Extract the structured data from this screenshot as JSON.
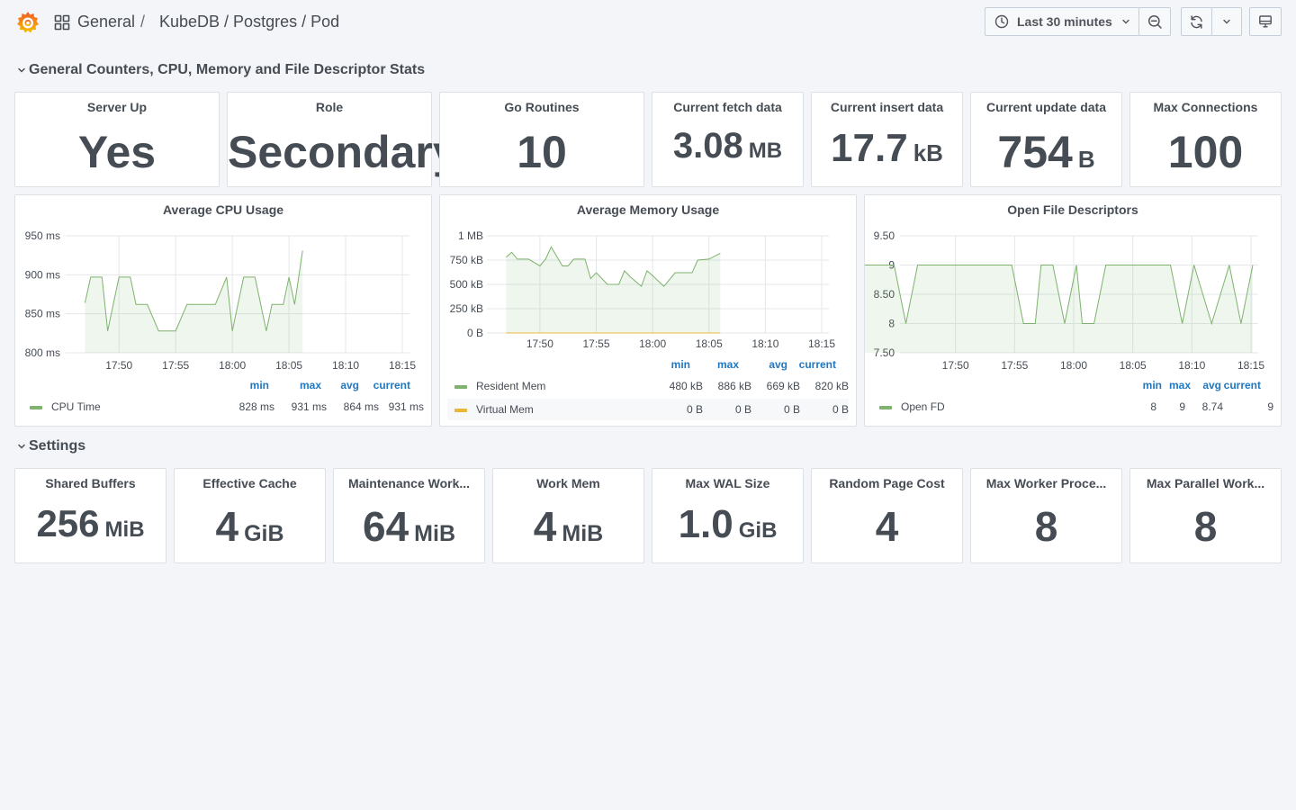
{
  "header": {
    "breadcrumb_root": "General",
    "breadcrumb_sep": "/",
    "dashboard_title": "KubeDB / Postgres / Pod",
    "time_range": "Last 30 minutes"
  },
  "rows": {
    "row1_title": "General Counters, CPU, Memory and File Descriptor Stats",
    "row2_title": "Settings"
  },
  "stats_top": [
    {
      "title": "Server Up",
      "value": "Yes",
      "unit": ""
    },
    {
      "title": "Role",
      "value": "Secondary",
      "unit": ""
    },
    {
      "title": "Go Routines",
      "value": "10",
      "unit": ""
    },
    {
      "title": "Current fetch data",
      "value": "3.08",
      "unit": "MB"
    },
    {
      "title": "Current insert data",
      "value": "17.7",
      "unit": "kB"
    },
    {
      "title": "Current update data",
      "value": "754",
      "unit": "B"
    },
    {
      "title": "Max Connections",
      "value": "100",
      "unit": ""
    }
  ],
  "stats_settings": [
    {
      "title": "Shared Buffers",
      "value": "256",
      "unit": "MiB"
    },
    {
      "title": "Effective Cache",
      "value": "4",
      "unit": "GiB"
    },
    {
      "title": "Maintenance Work...",
      "value": "64",
      "unit": "MiB"
    },
    {
      "title": "Work Mem",
      "value": "4",
      "unit": "MiB"
    },
    {
      "title": "Max WAL Size",
      "value": "1.0",
      "unit": "GiB"
    },
    {
      "title": "Random Page Cost",
      "value": "4",
      "unit": ""
    },
    {
      "title": "Max Worker Proce...",
      "value": "8",
      "unit": ""
    },
    {
      "title": "Max Parallel Work...",
      "value": "8",
      "unit": ""
    }
  ],
  "legend_headers": {
    "min": "min",
    "max": "max",
    "avg": "avg",
    "current": "current"
  },
  "colors": {
    "series_green": "#7eb26d",
    "series_yellow": "#eab839",
    "legend_header": "#1f78c1"
  },
  "chart_data": [
    {
      "type": "line",
      "title": "Average CPU Usage",
      "x_ticks": [
        "17:50",
        "17:55",
        "18:00",
        "18:05",
        "18:10",
        "18:15"
      ],
      "y_ticks": [
        "950 ms",
        "900 ms",
        "850 ms",
        "800 ms"
      ],
      "ylim": [
        800,
        950
      ],
      "x_range_min": [
        -3,
        16.2
      ],
      "legend": "bottom",
      "series": [
        {
          "name": "CPU Time",
          "color": "#7eb26d",
          "fill": true,
          "x_min": [
            -3,
            -2.5,
            -1.5,
            -1,
            0,
            1,
            1.5,
            2.5,
            3.5,
            4,
            5,
            6,
            7,
            8,
            8.5,
            9.5,
            10,
            11,
            12,
            13,
            13.5,
            14.5,
            15,
            15.5,
            16.2
          ],
          "values": [
            864,
            897,
            897,
            828,
            897,
            897,
            862,
            862,
            828,
            828,
            828,
            862,
            862,
            862,
            862,
            897,
            828,
            897,
            897,
            828,
            862,
            862,
            897,
            862,
            931
          ],
          "min": "828 ms",
          "max": "931 ms",
          "avg": "864 ms",
          "current": "931 ms"
        }
      ]
    },
    {
      "type": "line",
      "title": "Average Memory Usage",
      "x_ticks": [
        "17:50",
        "17:55",
        "18:00",
        "18:05",
        "18:10",
        "18:15"
      ],
      "y_ticks": [
        "1 MB",
        "750 kB",
        "500 kB",
        "250 kB",
        "0 B"
      ],
      "ylim": [
        0,
        1000
      ],
      "x_range_min": [
        -3,
        16.2
      ],
      "legend": "bottom",
      "series": [
        {
          "name": "Resident Mem",
          "color": "#7eb26d",
          "fill": true,
          "x_min": [
            -3,
            -2.5,
            -2,
            -1,
            0,
            0.5,
            1,
            2,
            2.5,
            3,
            4,
            4.5,
            5,
            6,
            7,
            7.5,
            8,
            9,
            9.5,
            10,
            11,
            12,
            13,
            13.5,
            14,
            15,
            16
          ],
          "values": [
            780,
            830,
            760,
            760,
            690,
            760,
            886,
            690,
            690,
            760,
            760,
            560,
            620,
            500,
            500,
            640,
            580,
            480,
            640,
            590,
            480,
            620,
            620,
            620,
            750,
            760,
            820
          ],
          "min": "480 kB",
          "max": "886 kB",
          "avg": "669 kB",
          "current": "820 kB"
        },
        {
          "name": "Virtual Mem",
          "color": "#eab839",
          "fill": false,
          "x_min": [
            -3,
            16
          ],
          "values": [
            0,
            0
          ],
          "min": "0 B",
          "max": "0 B",
          "avg": "0 B",
          "current": "0 B"
        }
      ]
    },
    {
      "type": "line",
      "title": "Open File Descriptors",
      "x_ticks": [
        "17:50",
        "17:55",
        "18:00",
        "18:05",
        "18:10",
        "18:15"
      ],
      "y_ticks": [
        "9.50",
        "9",
        "8.50",
        "8",
        "7.50"
      ],
      "ylim": [
        7.5,
        9.5
      ],
      "x_range_min": [
        -3,
        16.2
      ],
      "legend": "bottom",
      "series": [
        {
          "name": "Open FD",
          "color": "#7eb26d",
          "fill": true,
          "x_min": [
            -3,
            -0.5,
            0.5,
            1.5,
            9.5,
            10.5,
            11.5,
            12,
            13,
            14,
            15,
            15.5,
            16.5,
            17.5,
            18.5,
            19,
            21,
            23,
            24,
            25,
            26.5,
            28,
            29,
            30
          ],
          "values": [
            9,
            9,
            8,
            9,
            9,
            8,
            8,
            9,
            9,
            8,
            9,
            8,
            8,
            9,
            9,
            9,
            9,
            9,
            8,
            9,
            8,
            9,
            8,
            9
          ],
          "min": "8",
          "max": "9",
          "avg": "8.74",
          "current": "9"
        }
      ]
    }
  ]
}
